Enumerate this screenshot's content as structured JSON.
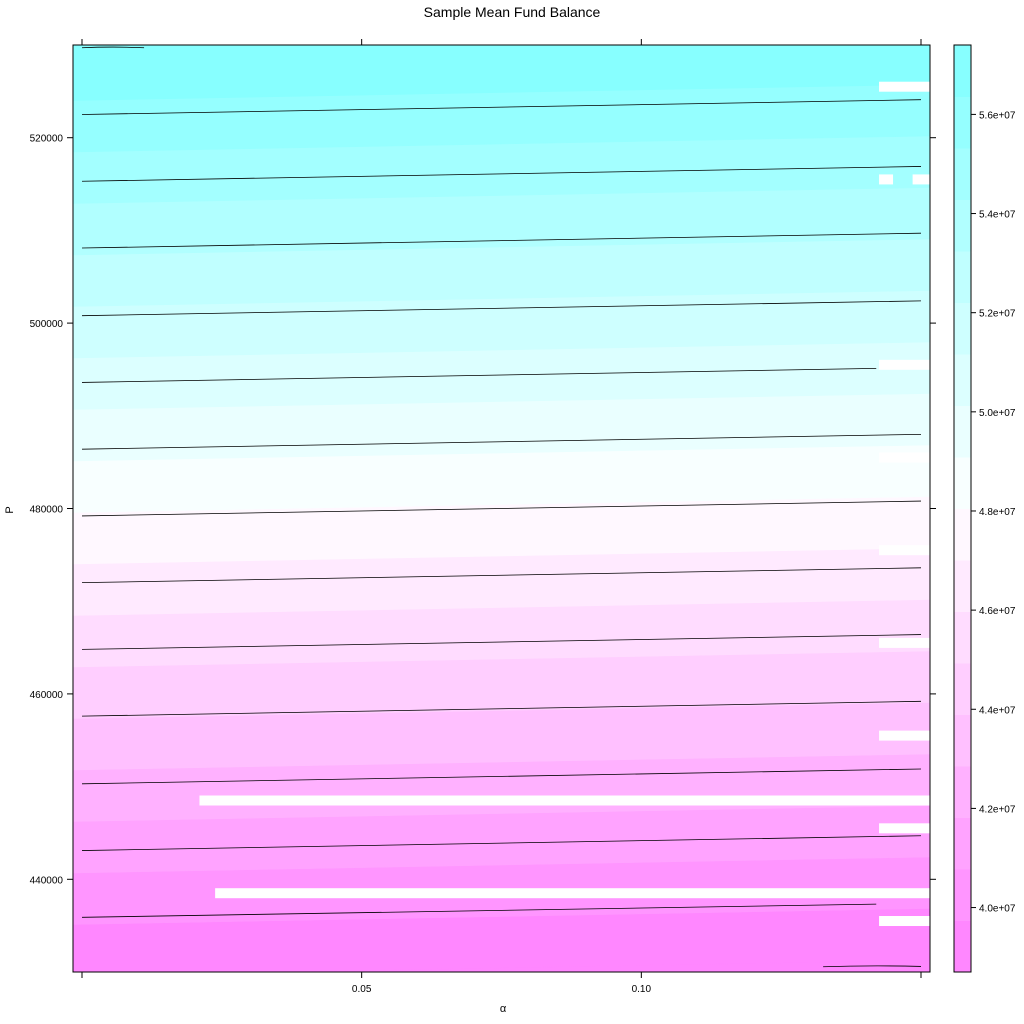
{
  "chart_data": {
    "type": "heatmap",
    "title": "Sample Mean Fund Balance",
    "xlabel": "α",
    "ylabel": "P",
    "xlim": [
      0.0,
      0.152
    ],
    "ylim": [
      430000,
      530000
    ],
    "x_ticks": [
      0.05,
      0.1
    ],
    "x_tick_labels": [
      "0.05",
      "0.10"
    ],
    "x_ticks_unlabeled": [
      0.0,
      0.15
    ],
    "y_ticks": [
      440000,
      460000,
      480000,
      500000,
      520000
    ],
    "y_tick_labels": [
      "440000",
      "460000",
      "480000",
      "500000",
      "520000"
    ],
    "colorbar": {
      "range": [
        38700000,
        57400000
      ],
      "ticks": [
        40000000,
        42000000,
        44000000,
        46000000,
        48000000,
        50000000,
        52000000,
        54000000,
        56000000
      ],
      "tick_labels": [
        "4.0e+07",
        "4.2e+07",
        "4.4e+07",
        "4.6e+07",
        "4.8e+07",
        "5.0e+07",
        "5.2e+07",
        "5.4e+07",
        "5.6e+07"
      ],
      "low_color": "#ff80ff",
      "mid_color": "#ffffff",
      "high_color": "#80ffff",
      "levels": 18
    },
    "contours": [
      {
        "p_left": 529700,
        "p_right": 529700,
        "x_start": 0.0,
        "x_end": 0.0111
      },
      {
        "p_left": 522500,
        "p_right": 524100
      },
      {
        "p_left": 515300,
        "p_right": 516900
      },
      {
        "p_left": 508100,
        "p_right": 509700
      },
      {
        "p_left": 500800,
        "p_right": 502400
      },
      {
        "p_left": 493600,
        "p_right": 495200,
        "x_end": 0.142
      },
      {
        "p_left": 486400,
        "p_right": 488000
      },
      {
        "p_left": 479200,
        "p_right": 480800
      },
      {
        "p_left": 472000,
        "p_right": 473600
      },
      {
        "p_left": 464800,
        "p_right": 466400
      },
      {
        "p_left": 457600,
        "p_right": 459200
      },
      {
        "p_left": 450300,
        "p_right": 451900
      },
      {
        "p_left": 443100,
        "p_right": 444700
      },
      {
        "p_left": 435900,
        "p_right": 437400,
        "x_end": 0.142
      },
      {
        "p_left": 430300,
        "p_right": 430600,
        "x_start": 0.1325,
        "x_end": 0.15
      }
    ],
    "missing_strips": [
      {
        "x_start": 0.1425,
        "x_end": 0.152,
        "p": 525500
      },
      {
        "x_start": 0.1425,
        "x_end": 0.145,
        "p": 515500
      },
      {
        "x_start": 0.1485,
        "x_end": 0.152,
        "p": 515500
      },
      {
        "x_start": 0.1425,
        "x_end": 0.152,
        "p": 495500
      },
      {
        "x_start": 0.1425,
        "x_end": 0.152,
        "p": 485500
      },
      {
        "x_start": 0.1425,
        "x_end": 0.152,
        "p": 475500
      },
      {
        "x_start": 0.1425,
        "x_end": 0.152,
        "p": 465500
      },
      {
        "x_start": 0.1425,
        "x_end": 0.152,
        "p": 455500
      },
      {
        "x_start": 0.021,
        "x_end": 0.152,
        "p": 448500
      },
      {
        "x_start": 0.1425,
        "x_end": 0.152,
        "p": 445500
      },
      {
        "x_start": 0.0238,
        "x_end": 0.152,
        "p": 438500
      },
      {
        "x_start": 0.1425,
        "x_end": 0.152,
        "p": 435500
      }
    ]
  }
}
